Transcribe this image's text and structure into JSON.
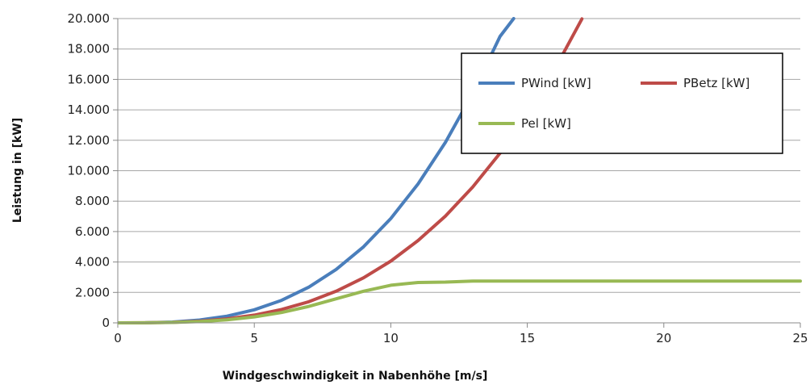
{
  "chart_data": {
    "type": "line",
    "xlabel": "Windgeschwindigkeit in Nabenhöhe [m/s]",
    "ylabel": "Leistung in [kW]",
    "xlim": [
      0,
      25
    ],
    "ylim": [
      0,
      20000
    ],
    "xticks": [
      0,
      5,
      10,
      15,
      20,
      25
    ],
    "yticks": [
      0,
      2000,
      4000,
      6000,
      8000,
      10000,
      12000,
      14000,
      16000,
      18000,
      20000
    ],
    "xtick_labels": [
      "0",
      "5",
      "10",
      "15",
      "20",
      "25"
    ],
    "ytick_labels": [
      "0",
      "2.000",
      "4.000",
      "6.000",
      "8.000",
      "10.000",
      "12.000",
      "14.000",
      "16.000",
      "18.000",
      "20.000"
    ],
    "grid": "horizontal",
    "legend_position": "top-right",
    "series": [
      {
        "name": "PWind [kW]",
        "color": "#4a7ebb",
        "x": [
          0,
          1,
          2,
          3,
          4,
          5,
          6,
          7,
          8,
          9,
          10,
          11,
          12,
          13,
          14,
          14.5
        ],
        "y": [
          0,
          7,
          55,
          185,
          440,
          860,
          1480,
          2350,
          3510,
          5000,
          6860,
          9130,
          11860,
          15080,
          18830,
          20000
        ]
      },
      {
        "name": "PBetz [kW]",
        "color": "#be4b48",
        "x": [
          0,
          1,
          2,
          3,
          4,
          5,
          6,
          7,
          8,
          9,
          10,
          11,
          12,
          13,
          14,
          15,
          16,
          17
        ],
        "y": [
          0,
          4,
          33,
          110,
          260,
          510,
          880,
          1390,
          2080,
          2960,
          4060,
          5410,
          7020,
          8930,
          11150,
          13720,
          16650,
          19980
        ]
      },
      {
        "name": "Pel [kW]",
        "color": "#98b954",
        "x": [
          0,
          1,
          2,
          3,
          4,
          5,
          6,
          7,
          8,
          9,
          10,
          11,
          12,
          13,
          14,
          15,
          16,
          17,
          18,
          19,
          20,
          21,
          22,
          23,
          24,
          25
        ],
        "y": [
          0,
          3,
          25,
          85,
          200,
          390,
          680,
          1080,
          1580,
          2080,
          2470,
          2650,
          2680,
          2750,
          2750,
          2750,
          2750,
          2750,
          2750,
          2750,
          2750,
          2750,
          2750,
          2750,
          2750,
          2750
        ]
      }
    ]
  }
}
